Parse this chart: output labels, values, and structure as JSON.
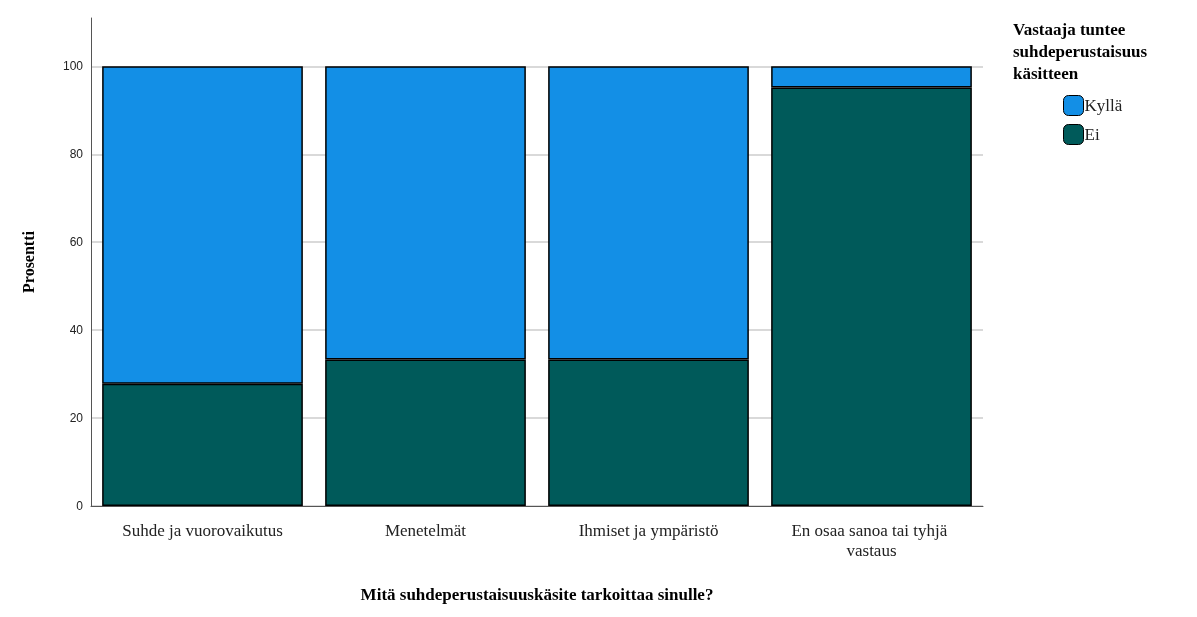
{
  "chart_data": {
    "type": "bar",
    "stacked": true,
    "xlabel": "Mitä suhdeperustaisuuskäsite tarkoittaa sinulle?",
    "ylabel": "Prosentti",
    "legend_title": "Vastaaja tuntee suhdeperustaisuus käsitteen",
    "categories": [
      "Suhde ja vuorovaikutus",
      "Menetelmät",
      "Ihmiset ja ympäristö",
      "En osaa sanoa tai tyhjä vastaus"
    ],
    "series": [
      {
        "name": "Ei",
        "color": "#005a5a",
        "values": [
          27.8,
          33.3,
          33.3,
          95.2
        ]
      },
      {
        "name": "Kyllä",
        "color": "#138fe6",
        "values": [
          72.2,
          66.7,
          66.7,
          4.8
        ]
      }
    ],
    "ylim": [
      0,
      111
    ],
    "yticks": [
      0,
      20,
      40,
      60,
      80,
      100
    ],
    "grid": "y",
    "legend": "top right"
  }
}
